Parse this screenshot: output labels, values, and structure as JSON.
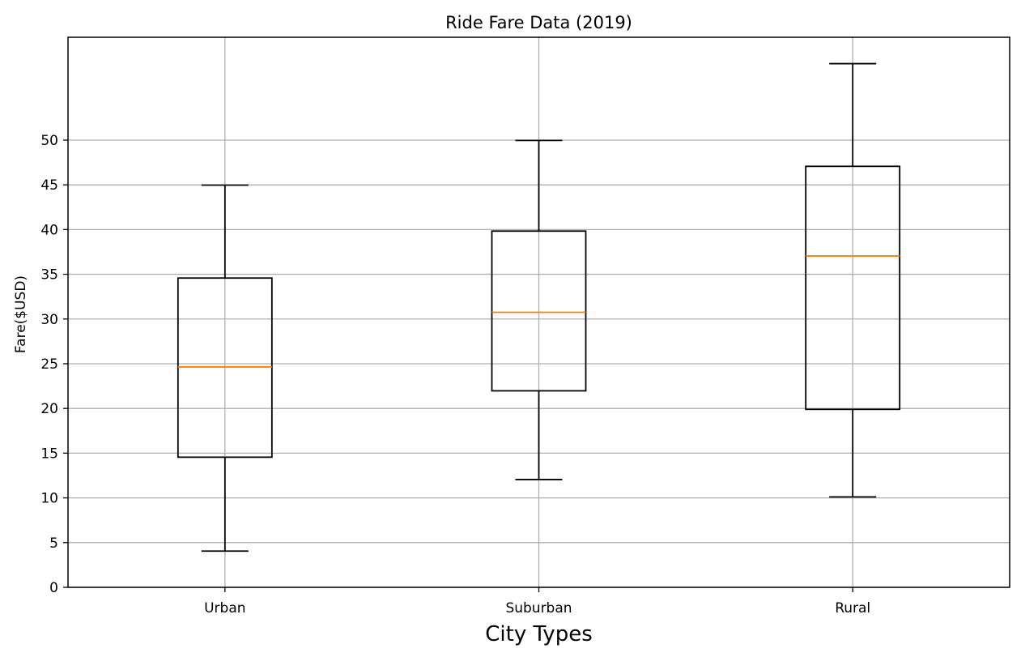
{
  "chart_data": {
    "type": "boxplot",
    "title": "Ride Fare Data (2019)",
    "xlabel": "City Types",
    "ylabel": "Fare($USD)",
    "ylim": [
      0,
      61.5
    ],
    "yticks": [
      0,
      5,
      10,
      15,
      20,
      25,
      30,
      35,
      40,
      45,
      50
    ],
    "grid": true,
    "categories": [
      "Urban",
      "Suburban",
      "Rural"
    ],
    "boxes": [
      {
        "category": "Urban",
        "whisker_low": 4.05,
        "q1": 14.55,
        "median": 24.64,
        "q3": 34.58,
        "whisker_high": 44.97
      },
      {
        "category": "Suburban",
        "whisker_low": 12.05,
        "q1": 21.97,
        "median": 30.75,
        "q3": 39.83,
        "whisker_high": 49.96
      },
      {
        "category": "Rural",
        "whisker_low": 10.11,
        "q1": 19.9,
        "median": 37.05,
        "q3": 47.07,
        "whisker_high": 58.55
      }
    ],
    "colors": {
      "box": "#000000",
      "median": "#ff7f0e",
      "grid": "#b0b0b0"
    }
  }
}
